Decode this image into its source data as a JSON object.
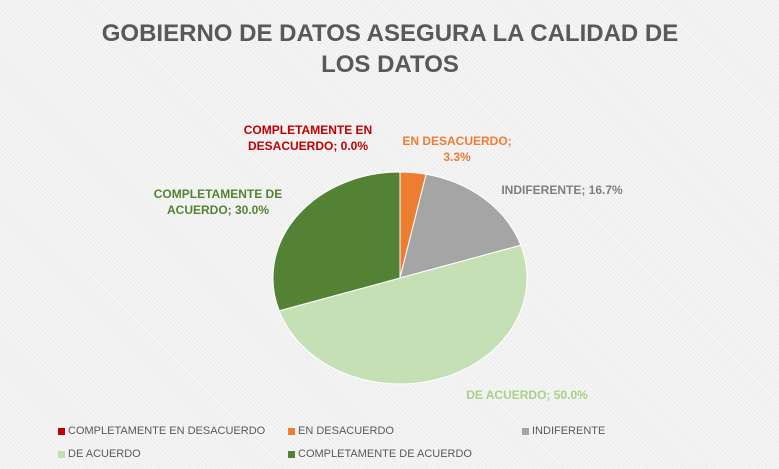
{
  "chart_data": {
    "type": "pie",
    "title": "GOBIERNO DE DATOS ASEGURA LA CALIDAD DE LOS DATOS",
    "categories": [
      "COMPLETAMENTE EN DESACUERDO",
      "EN DESACUERDO",
      "INDIFERENTE",
      "DE ACUERDO",
      "COMPLETAMENTE DE ACUERDO"
    ],
    "values": [
      0,
      3.3,
      16.7,
      50,
      30
    ],
    "value_labels": [
      "COMPLETAMENTE EN DESACUERDO; 0.0%",
      "EN DESACUERDO; 3.3%",
      "INDIFERENTE; 16.7%",
      "DE ACUERDO; 50.0%",
      "COMPLETAMENTE DE ACUERDO; 30.0%"
    ],
    "colors": [
      "#c00000",
      "#ed7d31",
      "#a5a5a5",
      "#c5e0b4",
      "#548235"
    ],
    "legend": "bottom"
  }
}
